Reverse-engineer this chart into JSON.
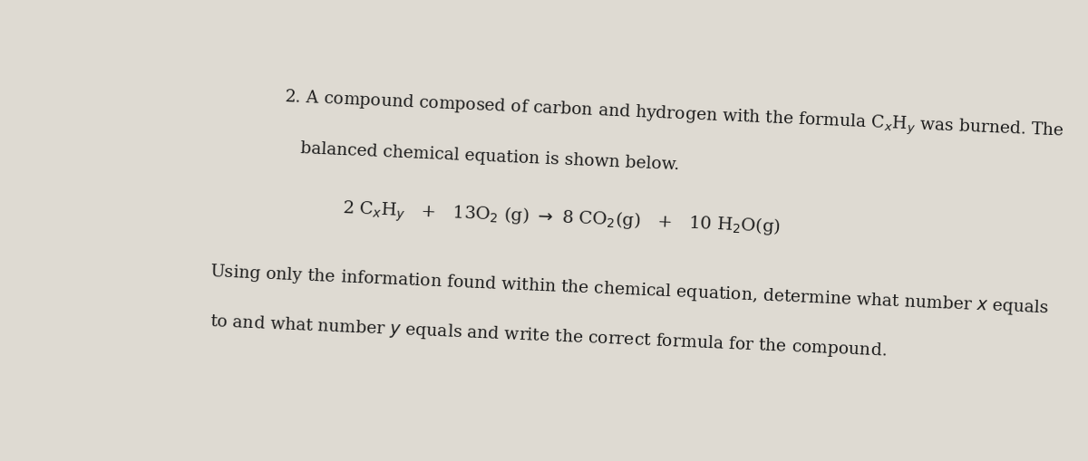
{
  "bg_color": "#dedad2",
  "text_color": "#1c1c1c",
  "fontsize": 13.5,
  "fontsize_eq": 14.0,
  "rotation": -2.5,
  "left_bar_color": "#2a2520",
  "left_bar_width": 18
}
